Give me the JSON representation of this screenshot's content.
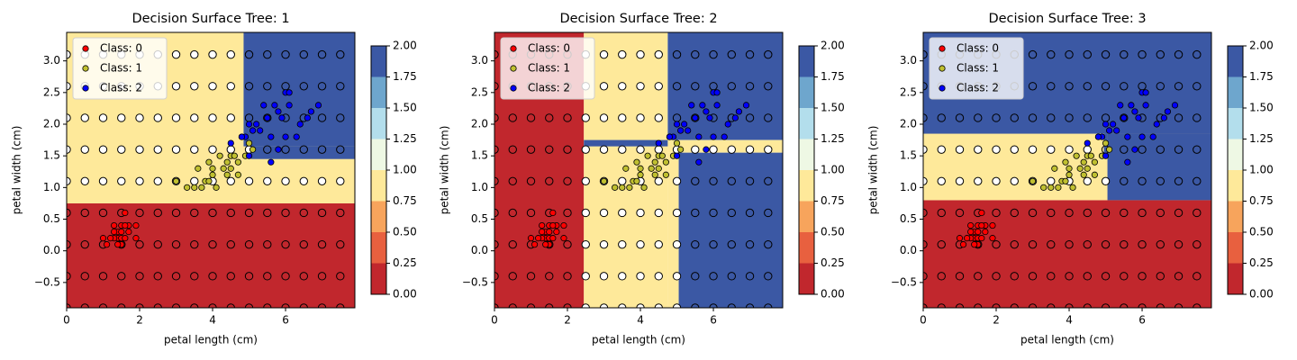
{
  "chart_data": [
    {
      "type": "decision-surface",
      "title": "Decision Surface Tree: 1",
      "xlabel": "petal length (cm)",
      "ylabel": "petal width (cm)",
      "xlim": [
        0,
        7.9
      ],
      "ylim": [
        -0.9,
        3.45
      ],
      "xticks": [
        0,
        2,
        4,
        6
      ],
      "yticks": [
        {
          "value": -0.5,
          "label": "−0.5"
        },
        {
          "value": 0,
          "label": "0.0"
        },
        {
          "value": 0.5,
          "label": "0.5"
        },
        {
          "value": 1,
          "label": "1.0"
        },
        {
          "value": 1.5,
          "label": "1.5"
        },
        {
          "value": 2,
          "label": "2.0"
        },
        {
          "value": 2.5,
          "label": "2.5"
        },
        {
          "value": 3,
          "label": "3.0"
        }
      ],
      "class_colors": [
        "#c1272d",
        "#fee99a",
        "#3b58a4"
      ],
      "regions": [
        {
          "x0": 0,
          "x1": 7.9,
          "y0": -0.9,
          "y1": 0.75,
          "class": 0
        },
        {
          "x0": 0,
          "x1": 7.9,
          "y0": 0.75,
          "y1": 3.45,
          "class": 1
        },
        {
          "x0": 4.85,
          "x1": 7.9,
          "y0": 1.65,
          "y1": 3.45,
          "class": 2
        },
        {
          "x0": 5.05,
          "x1": 7.9,
          "y0": 1.45,
          "y1": 1.65,
          "class": 2
        }
      ],
      "grid_x": [
        0,
        0.5,
        1,
        1.5,
        2,
        2.5,
        3,
        3.5,
        4,
        4.5,
        5,
        5.5,
        6,
        6.5,
        7,
        7.5
      ],
      "grid_y": [
        -0.9,
        -0.4,
        0.1,
        0.6,
        1.1,
        1.6,
        2.1,
        2.6,
        3.1
      ],
      "legend": "upper left",
      "series": [
        {
          "name": "Class: 0",
          "color": "#ff0000",
          "x": [
            1.4,
            1.3,
            1.5,
            1.7,
            1.4,
            1.5,
            1.6,
            1.1,
            1.2,
            1.5,
            1.3,
            1.7,
            1.0,
            1.9,
            1.6,
            1.5,
            1.4,
            1.6,
            1.9,
            1.3
          ],
          "y": [
            0.2,
            0.2,
            0.2,
            0.4,
            0.3,
            0.1,
            0.2,
            0.1,
            0.2,
            0.4,
            0.4,
            0.3,
            0.2,
            0.2,
            0.4,
            0.3,
            0.1,
            0.6,
            0.4,
            0.3
          ]
        },
        {
          "name": "Class: 1",
          "color": "#c0c030",
          "x": [
            4.7,
            4.5,
            4.9,
            4.0,
            4.6,
            3.3,
            3.9,
            3.5,
            4.2,
            4.4,
            4.8,
            3.6,
            4.1,
            3.0,
            4.5,
            5.0,
            3.8,
            3.7,
            5.1,
            4.3,
            4.0,
            4.7,
            4.4,
            3.9
          ],
          "y": [
            1.4,
            1.5,
            1.5,
            1.3,
            1.5,
            1.0,
            1.4,
            1.0,
            1.5,
            1.4,
            1.8,
            1.3,
            1.0,
            1.1,
            1.3,
            1.7,
            1.1,
            1.0,
            1.6,
            1.3,
            1.2,
            1.2,
            1.2,
            1.1
          ]
        },
        {
          "name": "Class: 2",
          "color": "#0000ff",
          "x": [
            6.0,
            5.1,
            5.9,
            5.6,
            5.8,
            6.6,
            4.5,
            6.3,
            6.1,
            5.3,
            5.5,
            5.0,
            6.7,
            6.9,
            5.0,
            5.7,
            4.9,
            6.0,
            4.8,
            6.4,
            5.6,
            6.1,
            5.4,
            5.2,
            5.8
          ],
          "y": [
            2.5,
            1.9,
            2.1,
            1.8,
            2.2,
            2.1,
            1.7,
            1.8,
            2.5,
            1.9,
            2.1,
            2.0,
            2.2,
            2.3,
            1.5,
            2.3,
            1.8,
            1.8,
            1.8,
            2.0,
            1.4,
            2.3,
            2.3,
            2.0,
            1.6
          ]
        }
      ],
      "colorbar": {
        "ticks": [
          {
            "value": 0,
            "label": "0.00"
          },
          {
            "value": 0.25,
            "label": "0.25"
          },
          {
            "value": 0.5,
            "label": "0.50"
          },
          {
            "value": 0.75,
            "label": "0.75"
          },
          {
            "value": 1,
            "label": "1.00"
          },
          {
            "value": 1.25,
            "label": "1.25"
          },
          {
            "value": 1.5,
            "label": "1.50"
          },
          {
            "value": 1.75,
            "label": "1.75"
          },
          {
            "value": 2,
            "label": "2.00"
          }
        ],
        "colors": [
          "#c1272d",
          "#e8603f",
          "#f7a45c",
          "#fee99a",
          "#eef8e4",
          "#b3deec",
          "#6ea6cd",
          "#3b58a4"
        ]
      }
    },
    {
      "type": "decision-surface",
      "title": "Decision Surface Tree: 2",
      "xlabel": "petal length (cm)",
      "ylabel": "petal width (cm)",
      "xlim": [
        0,
        7.9
      ],
      "ylim": [
        -0.9,
        3.45
      ],
      "xticks": [
        0,
        2,
        4,
        6
      ],
      "yticks": [
        {
          "value": -0.5,
          "label": "−0.5"
        },
        {
          "value": 0,
          "label": "0.0"
        },
        {
          "value": 0.5,
          "label": "0.5"
        },
        {
          "value": 1,
          "label": "1.0"
        },
        {
          "value": 1.5,
          "label": "1.5"
        },
        {
          "value": 2,
          "label": "2.0"
        },
        {
          "value": 2.5,
          "label": "2.5"
        },
        {
          "value": 3,
          "label": "3.0"
        }
      ],
      "class_colors": [
        "#c1272d",
        "#fee99a",
        "#3b58a4"
      ],
      "regions": [
        {
          "x0": 0,
          "x1": 2.45,
          "y0": -0.9,
          "y1": 3.45,
          "class": 0
        },
        {
          "x0": 2.45,
          "x1": 4.75,
          "y0": -0.9,
          "y1": 3.45,
          "class": 1
        },
        {
          "x0": 4.75,
          "x1": 7.9,
          "y0": 1.75,
          "y1": 3.45,
          "class": 2
        },
        {
          "x0": 2.45,
          "x1": 4.75,
          "y0": 1.65,
          "y1": 1.75,
          "class": 2
        },
        {
          "x0": 4.75,
          "x1": 7.9,
          "y0": 1.55,
          "y1": 1.75,
          "class": 1
        },
        {
          "x0": 4.75,
          "x1": 5.05,
          "y0": -0.9,
          "y1": 1.55,
          "class": 1
        },
        {
          "x0": 5.05,
          "x1": 7.9,
          "y0": -0.9,
          "y1": 1.55,
          "class": 2
        }
      ],
      "grid_x": [
        0,
        0.5,
        1,
        1.5,
        2,
        2.5,
        3,
        3.5,
        4,
        4.5,
        5,
        5.5,
        6,
        6.5,
        7,
        7.5
      ],
      "grid_y": [
        -0.9,
        -0.4,
        0.1,
        0.6,
        1.1,
        1.6,
        2.1,
        2.6,
        3.1
      ],
      "legend": "upper left",
      "series": [
        {
          "name": "Class: 0",
          "color": "#ff0000",
          "x": [
            1.4,
            1.3,
            1.5,
            1.7,
            1.4,
            1.5,
            1.6,
            1.1,
            1.2,
            1.5,
            1.3,
            1.7,
            1.0,
            1.9,
            1.6,
            1.5,
            1.4,
            1.6,
            1.9,
            1.3
          ],
          "y": [
            0.2,
            0.2,
            0.2,
            0.4,
            0.3,
            0.1,
            0.2,
            0.1,
            0.2,
            0.4,
            0.4,
            0.3,
            0.2,
            0.2,
            0.4,
            0.3,
            0.1,
            0.6,
            0.4,
            0.3
          ]
        },
        {
          "name": "Class: 1",
          "color": "#c0c030",
          "x": [
            4.7,
            4.5,
            4.9,
            4.0,
            4.6,
            3.3,
            3.9,
            3.5,
            4.2,
            4.4,
            4.8,
            3.6,
            4.1,
            3.0,
            4.5,
            5.0,
            3.8,
            3.7,
            5.1,
            4.3,
            4.0,
            4.7,
            4.4,
            3.9
          ],
          "y": [
            1.4,
            1.5,
            1.5,
            1.3,
            1.5,
            1.0,
            1.4,
            1.0,
            1.5,
            1.4,
            1.8,
            1.3,
            1.0,
            1.1,
            1.3,
            1.7,
            1.1,
            1.0,
            1.6,
            1.3,
            1.2,
            1.2,
            1.2,
            1.1
          ]
        },
        {
          "name": "Class: 2",
          "color": "#0000ff",
          "x": [
            6.0,
            5.1,
            5.9,
            5.6,
            5.8,
            6.6,
            4.5,
            6.3,
            6.1,
            5.3,
            5.5,
            5.0,
            6.7,
            6.9,
            5.0,
            5.7,
            4.9,
            6.0,
            4.8,
            6.4,
            5.6,
            6.1,
            5.4,
            5.2,
            5.8
          ],
          "y": [
            2.5,
            1.9,
            2.1,
            1.8,
            2.2,
            2.1,
            1.7,
            1.8,
            2.5,
            1.9,
            2.1,
            2.0,
            2.2,
            2.3,
            1.5,
            2.3,
            1.8,
            1.8,
            1.8,
            2.0,
            1.4,
            2.3,
            2.3,
            2.0,
            1.6
          ]
        }
      ],
      "colorbar": {
        "ticks": [
          {
            "value": 0,
            "label": "0.00"
          },
          {
            "value": 0.25,
            "label": "0.25"
          },
          {
            "value": 0.5,
            "label": "0.50"
          },
          {
            "value": 0.75,
            "label": "0.75"
          },
          {
            "value": 1,
            "label": "1.00"
          },
          {
            "value": 1.25,
            "label": "1.25"
          },
          {
            "value": 1.5,
            "label": "1.50"
          },
          {
            "value": 1.75,
            "label": "1.75"
          },
          {
            "value": 2,
            "label": "2.00"
          }
        ],
        "colors": [
          "#c1272d",
          "#e8603f",
          "#f7a45c",
          "#fee99a",
          "#eef8e4",
          "#b3deec",
          "#6ea6cd",
          "#3b58a4"
        ]
      }
    },
    {
      "type": "decision-surface",
      "title": "Decision Surface Tree: 3",
      "xlabel": "petal length (cm)",
      "ylabel": "petal width (cm)",
      "xlim": [
        0,
        7.9
      ],
      "ylim": [
        -0.9,
        3.45
      ],
      "xticks": [
        0,
        2,
        4,
        6
      ],
      "yticks": [
        {
          "value": -0.5,
          "label": "−0.5"
        },
        {
          "value": 0,
          "label": "0.0"
        },
        {
          "value": 0.5,
          "label": "0.5"
        },
        {
          "value": 1,
          "label": "1.0"
        },
        {
          "value": 1.5,
          "label": "1.5"
        },
        {
          "value": 2,
          "label": "2.0"
        },
        {
          "value": 2.5,
          "label": "2.5"
        },
        {
          "value": 3,
          "label": "3.0"
        }
      ],
      "class_colors": [
        "#c1272d",
        "#fee99a",
        "#3b58a4"
      ],
      "regions": [
        {
          "x0": 0,
          "x1": 7.9,
          "y0": -0.9,
          "y1": 0.8,
          "class": 0
        },
        {
          "x0": 0,
          "x1": 7.9,
          "y0": 0.8,
          "y1": 3.45,
          "class": 1
        },
        {
          "x0": 0,
          "x1": 7.9,
          "y0": 1.85,
          "y1": 3.45,
          "class": 2
        },
        {
          "x0": 5.05,
          "x1": 7.9,
          "y0": 0.8,
          "y1": 1.85,
          "class": 2
        },
        {
          "x0": 4.95,
          "x1": 5.05,
          "y0": 1.55,
          "y1": 1.85,
          "class": 2
        }
      ],
      "grid_x": [
        0,
        0.5,
        1,
        1.5,
        2,
        2.5,
        3,
        3.5,
        4,
        4.5,
        5,
        5.5,
        6,
        6.5,
        7,
        7.5
      ],
      "grid_y": [
        -0.9,
        -0.4,
        0.1,
        0.6,
        1.1,
        1.6,
        2.1,
        2.6,
        3.1
      ],
      "legend": "upper left",
      "series": [
        {
          "name": "Class: 0",
          "color": "#ff0000",
          "x": [
            1.4,
            1.3,
            1.5,
            1.7,
            1.4,
            1.5,
            1.6,
            1.1,
            1.2,
            1.5,
            1.3,
            1.7,
            1.0,
            1.9,
            1.6,
            1.5,
            1.4,
            1.6,
            1.9,
            1.3
          ],
          "y": [
            0.2,
            0.2,
            0.2,
            0.4,
            0.3,
            0.1,
            0.2,
            0.1,
            0.2,
            0.4,
            0.4,
            0.3,
            0.2,
            0.2,
            0.4,
            0.3,
            0.1,
            0.6,
            0.4,
            0.3
          ]
        },
        {
          "name": "Class: 1",
          "color": "#c0c030",
          "x": [
            4.7,
            4.5,
            4.9,
            4.0,
            4.6,
            3.3,
            3.9,
            3.5,
            4.2,
            4.4,
            4.8,
            3.6,
            4.1,
            3.0,
            4.5,
            5.0,
            3.8,
            3.7,
            5.1,
            4.3,
            4.0,
            4.7,
            4.4,
            3.9
          ],
          "y": [
            1.4,
            1.5,
            1.5,
            1.3,
            1.5,
            1.0,
            1.4,
            1.0,
            1.5,
            1.4,
            1.8,
            1.3,
            1.0,
            1.1,
            1.3,
            1.7,
            1.1,
            1.0,
            1.6,
            1.3,
            1.2,
            1.2,
            1.2,
            1.1
          ]
        },
        {
          "name": "Class: 2",
          "color": "#0000ff",
          "x": [
            6.0,
            5.1,
            5.9,
            5.6,
            5.8,
            6.6,
            4.5,
            6.3,
            6.1,
            5.3,
            5.5,
            5.0,
            6.7,
            6.9,
            5.0,
            5.7,
            4.9,
            6.0,
            4.8,
            6.4,
            5.6,
            6.1,
            5.4,
            5.2,
            5.8
          ],
          "y": [
            2.5,
            1.9,
            2.1,
            1.8,
            2.2,
            2.1,
            1.7,
            1.8,
            2.5,
            1.9,
            2.1,
            2.0,
            2.2,
            2.3,
            1.5,
            2.3,
            1.8,
            1.8,
            1.8,
            2.0,
            1.4,
            2.3,
            2.3,
            2.0,
            1.6
          ]
        }
      ],
      "colorbar": {
        "ticks": [
          {
            "value": 0,
            "label": "0.00"
          },
          {
            "value": 0.25,
            "label": "0.25"
          },
          {
            "value": 0.5,
            "label": "0.50"
          },
          {
            "value": 0.75,
            "label": "0.75"
          },
          {
            "value": 1,
            "label": "1.00"
          },
          {
            "value": 1.25,
            "label": "1.25"
          },
          {
            "value": 1.5,
            "label": "1.50"
          },
          {
            "value": 1.75,
            "label": "1.75"
          },
          {
            "value": 2,
            "label": "2.00"
          }
        ],
        "colors": [
          "#c1272d",
          "#e8603f",
          "#f7a45c",
          "#fee99a",
          "#eef8e4",
          "#b3deec",
          "#6ea6cd",
          "#3b58a4"
        ]
      }
    }
  ]
}
